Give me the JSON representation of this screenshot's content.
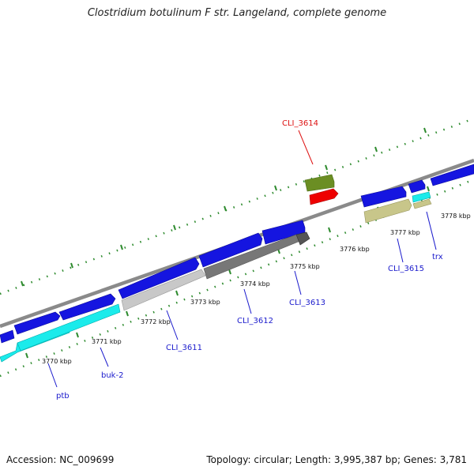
{
  "title": "Clostridium botulinum F str. Langeland, complete genome",
  "footer": {
    "accession": "Accession: NC_009699",
    "stats": "Topology: circular; Length: 3,995,387 bp; Genes: 3,781"
  },
  "colors": {
    "backbone": "#8a8a8a",
    "tick": "#2e8b2e",
    "forward_gene": "#1515e0",
    "label_blue": "#1a1acc",
    "label_red": "#dd1111"
  },
  "scale_labels": [
    "3770 kbp",
    "3771 kbp",
    "3772 kbp",
    "3773 kbp",
    "3774 kbp",
    "3775 kbp",
    "3776 kbp",
    "3777 kbp",
    "3778 kbp"
  ],
  "gene_labels": [
    {
      "id": "ptb",
      "text": "ptb",
      "color": "#1a1acc"
    },
    {
      "id": "buk2",
      "text": "buk-2",
      "color": "#1a1acc"
    },
    {
      "id": "cli3611",
      "text": "CLI_3611",
      "color": "#1a1acc"
    },
    {
      "id": "cli3612",
      "text": "CLI_3612",
      "color": "#1a1acc"
    },
    {
      "id": "cli3613",
      "text": "CLI_3613",
      "color": "#1a1acc"
    },
    {
      "id": "cli3614",
      "text": "CLI_3614",
      "color": "#dd1111"
    },
    {
      "id": "cli3615",
      "text": "CLI_3615",
      "color": "#1a1acc"
    },
    {
      "id": "trx",
      "text": "trx",
      "color": "#1a1acc"
    }
  ]
}
